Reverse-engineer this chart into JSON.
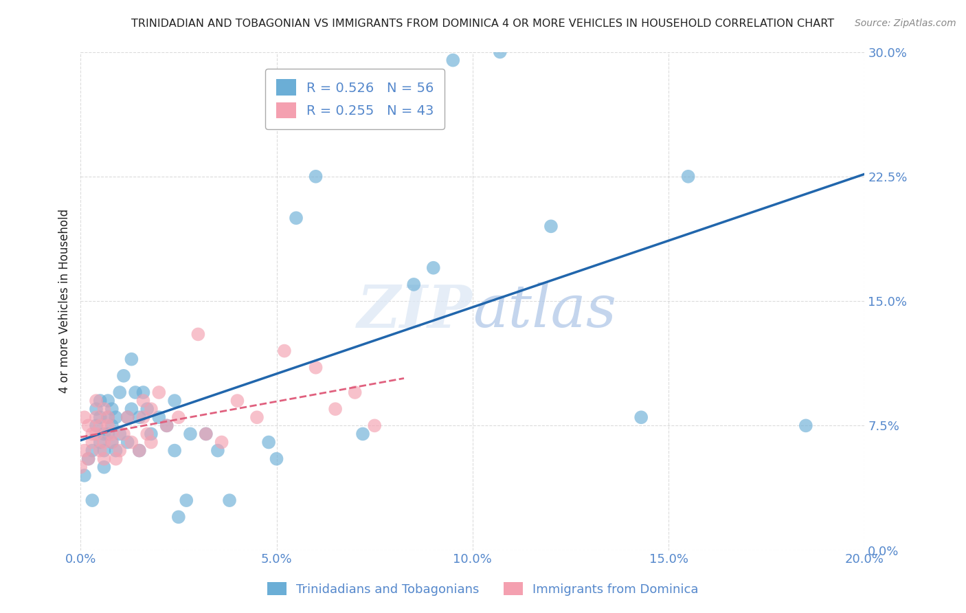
{
  "title": "TRINIDADIAN AND TOBAGONIAN VS IMMIGRANTS FROM DOMINICA 4 OR MORE VEHICLES IN HOUSEHOLD CORRELATION CHART",
  "source": "Source: ZipAtlas.com",
  "ylabel_label": "4 or more Vehicles in Household",
  "legend_bottom": [
    "Trinidadians and Tobagonians",
    "Immigrants from Dominica"
  ],
  "R1": 0.526,
  "N1": 56,
  "R2": 0.255,
  "N2": 43,
  "color_blue": "#6baed6",
  "color_pink": "#f4a0b0",
  "line_blue": "#2166ac",
  "line_pink": "#e0607e",
  "xlim": [
    0.0,
    0.2
  ],
  "ylim": [
    0.0,
    0.3
  ],
  "blue_scatter_x": [
    0.001,
    0.002,
    0.003,
    0.003,
    0.004,
    0.004,
    0.005,
    0.005,
    0.005,
    0.006,
    0.006,
    0.006,
    0.007,
    0.007,
    0.007,
    0.008,
    0.008,
    0.008,
    0.009,
    0.009,
    0.01,
    0.01,
    0.011,
    0.012,
    0.012,
    0.013,
    0.013,
    0.014,
    0.015,
    0.015,
    0.016,
    0.017,
    0.018,
    0.02,
    0.022,
    0.024,
    0.024,
    0.025,
    0.027,
    0.028,
    0.032,
    0.035,
    0.038,
    0.048,
    0.05,
    0.055,
    0.06,
    0.072,
    0.085,
    0.09,
    0.095,
    0.107,
    0.12,
    0.143,
    0.155,
    0.185
  ],
  "blue_scatter_y": [
    0.045,
    0.055,
    0.06,
    0.03,
    0.085,
    0.075,
    0.065,
    0.08,
    0.09,
    0.06,
    0.07,
    0.05,
    0.08,
    0.07,
    0.09,
    0.085,
    0.065,
    0.075,
    0.06,
    0.08,
    0.095,
    0.07,
    0.105,
    0.08,
    0.065,
    0.115,
    0.085,
    0.095,
    0.08,
    0.06,
    0.095,
    0.085,
    0.07,
    0.08,
    0.075,
    0.09,
    0.06,
    0.02,
    0.03,
    0.07,
    0.07,
    0.06,
    0.03,
    0.065,
    0.055,
    0.2,
    0.225,
    0.07,
    0.16,
    0.17,
    0.295,
    0.3,
    0.195,
    0.08,
    0.225,
    0.075
  ],
  "pink_scatter_x": [
    0.0,
    0.001,
    0.001,
    0.002,
    0.002,
    0.003,
    0.003,
    0.004,
    0.004,
    0.004,
    0.005,
    0.005,
    0.006,
    0.006,
    0.006,
    0.007,
    0.007,
    0.008,
    0.008,
    0.009,
    0.01,
    0.011,
    0.012,
    0.013,
    0.015,
    0.016,
    0.016,
    0.017,
    0.018,
    0.018,
    0.02,
    0.022,
    0.025,
    0.03,
    0.032,
    0.036,
    0.04,
    0.045,
    0.052,
    0.06,
    0.065,
    0.07,
    0.075
  ],
  "pink_scatter_y": [
    0.05,
    0.06,
    0.08,
    0.055,
    0.075,
    0.065,
    0.07,
    0.09,
    0.07,
    0.08,
    0.06,
    0.075,
    0.085,
    0.065,
    0.055,
    0.075,
    0.08,
    0.065,
    0.07,
    0.055,
    0.06,
    0.07,
    0.08,
    0.065,
    0.06,
    0.08,
    0.09,
    0.07,
    0.085,
    0.065,
    0.095,
    0.075,
    0.08,
    0.13,
    0.07,
    0.065,
    0.09,
    0.08,
    0.12,
    0.11,
    0.085,
    0.095,
    0.075
  ],
  "background_color": "#ffffff",
  "grid_color": "#cccccc",
  "title_color": "#222222",
  "tick_label_color": "#5588cc"
}
